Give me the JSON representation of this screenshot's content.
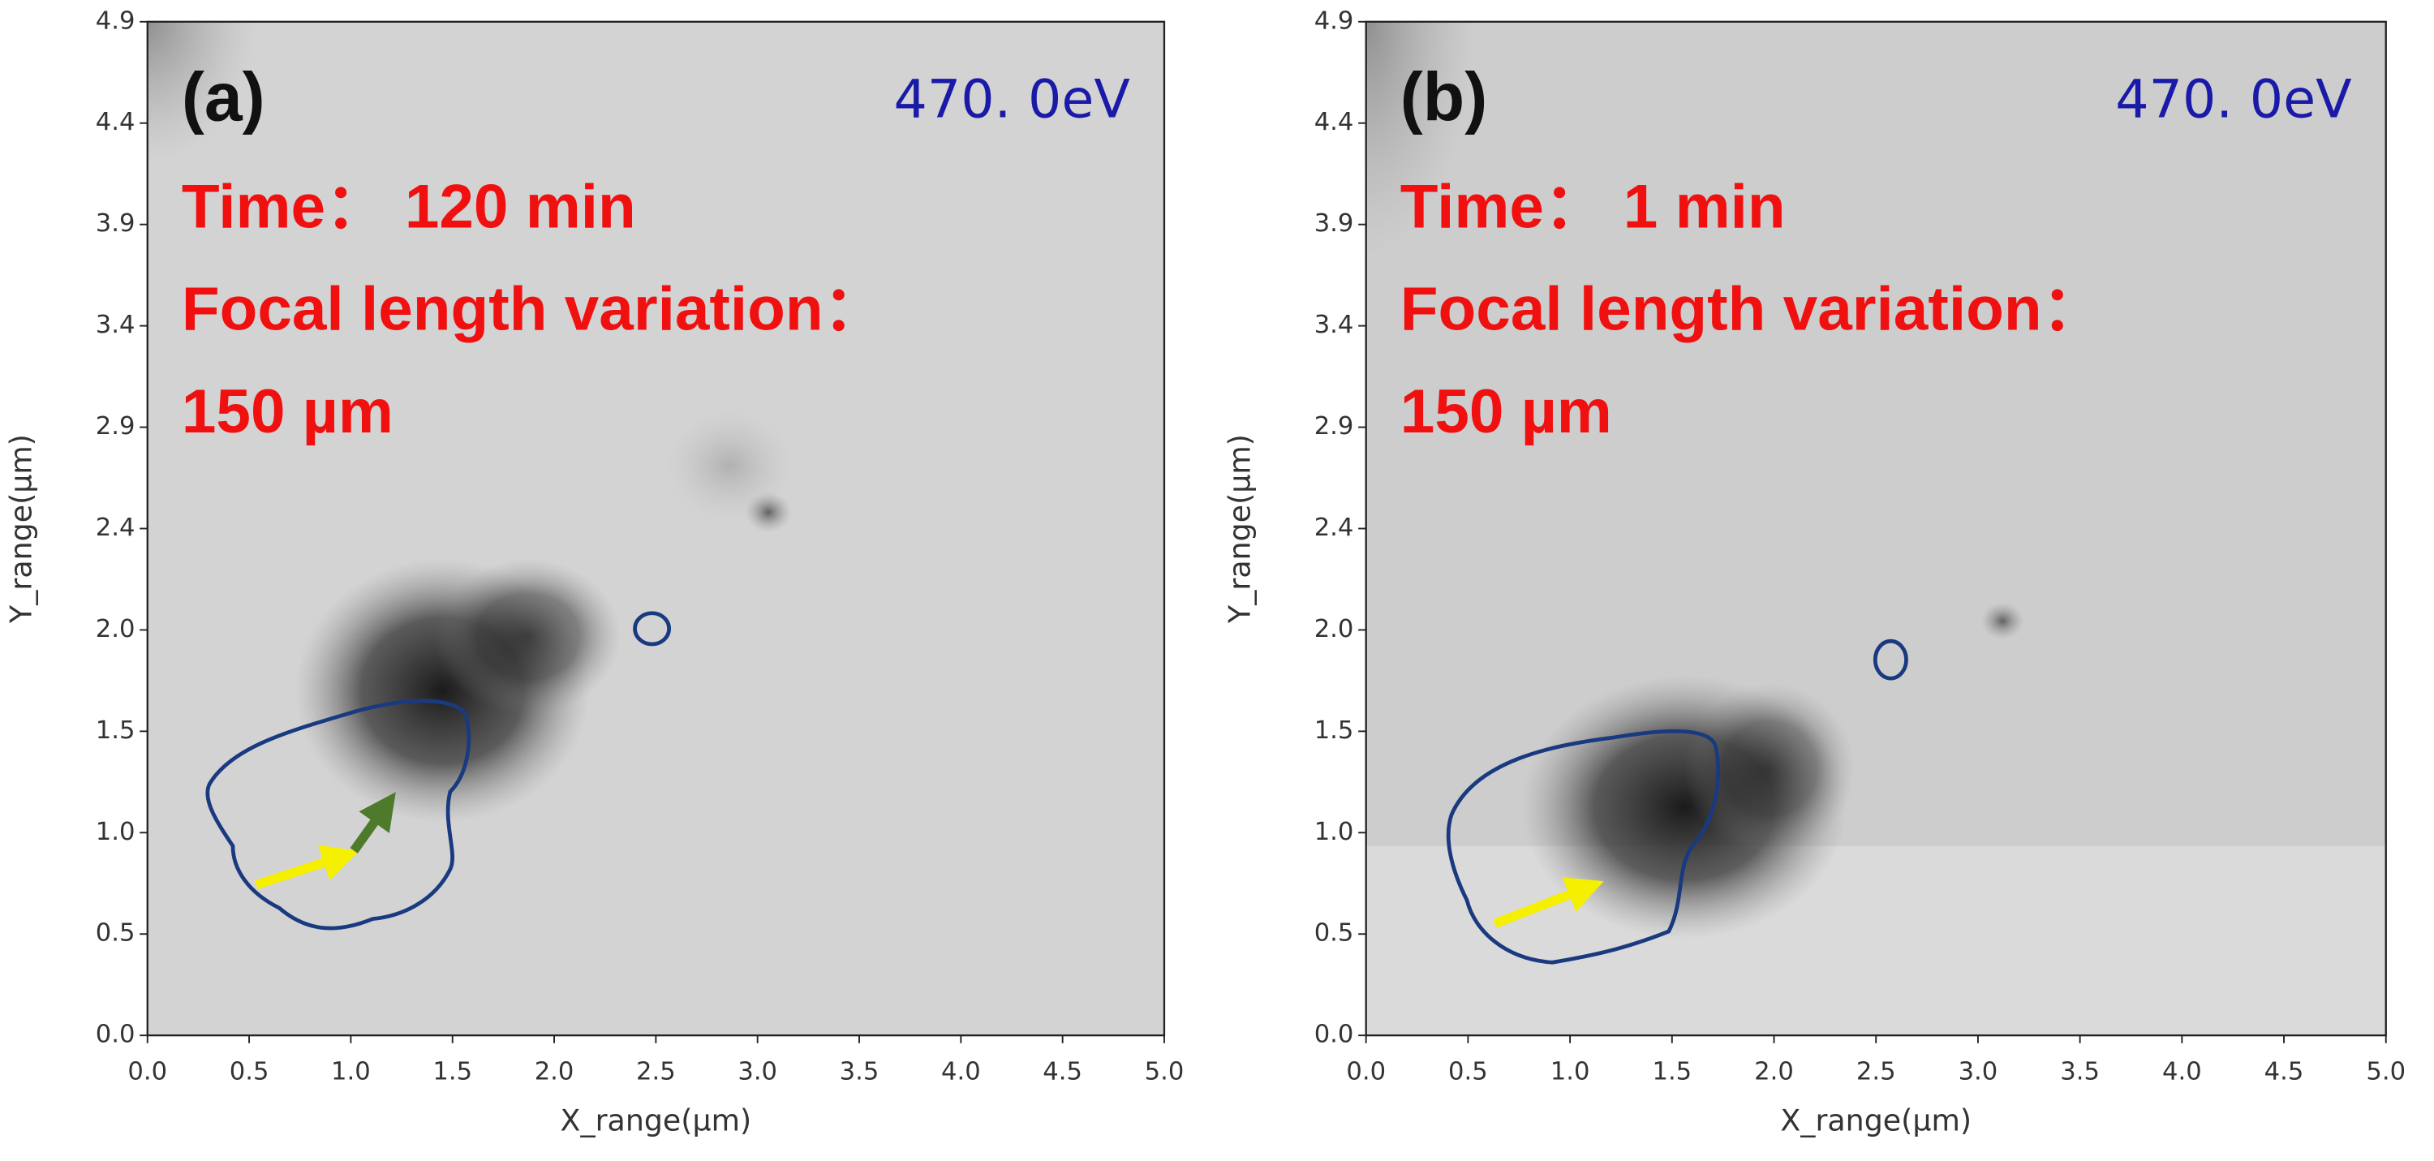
{
  "chart_data": [
    {
      "type": "image",
      "panel_label": "(a)",
      "energy_label": "470. 0eV",
      "annotations": [
        "Time： 120 min",
        "Focal length variation：",
        "150 µm"
      ],
      "xlabel": "X_range(µm)",
      "ylabel": "Y_range(µm)",
      "xlim": [
        0,
        5
      ],
      "ylim": [
        0,
        4.9
      ],
      "xticks": [
        {
          "value": 0,
          "label": "0.0"
        },
        {
          "value": 0.5,
          "label": "0.5"
        },
        {
          "value": 1,
          "label": "1.0"
        },
        {
          "value": 1.5,
          "label": "1.5"
        },
        {
          "value": 2,
          "label": "2.0"
        },
        {
          "value": 2.5,
          "label": "2.5"
        },
        {
          "value": 3,
          "label": "3.0"
        },
        {
          "value": 3.5,
          "label": "3.5"
        },
        {
          "value": 4,
          "label": "4.0"
        },
        {
          "value": 4.5,
          "label": "4.5"
        },
        {
          "value": 5,
          "label": "5.0"
        }
      ],
      "yticks": [
        {
          "value": 0,
          "label": "0.0"
        },
        {
          "value": 0.49,
          "label": "0.5"
        },
        {
          "value": 0.98,
          "label": "1.0"
        },
        {
          "value": 1.47,
          "label": "1.5"
        },
        {
          "value": 1.96,
          "label": "2.0"
        },
        {
          "value": 2.45,
          "label": "2.4"
        },
        {
          "value": 2.94,
          "label": "2.9"
        },
        {
          "value": 3.43,
          "label": "3.4"
        },
        {
          "value": 3.92,
          "label": "3.9"
        },
        {
          "value": 4.41,
          "label": "4.4"
        },
        {
          "value": 4.9,
          "label": "4.9"
        }
      ]
    },
    {
      "type": "image",
      "panel_label": "(b)",
      "energy_label": "470. 0eV",
      "annotations": [
        "Time： 1 min",
        "Focal length variation：",
        "150 µm"
      ],
      "xlabel": "X_range(µm)",
      "ylabel": "Y_range(µm)",
      "xlim": [
        0,
        5
      ],
      "ylim": [
        0,
        4.9
      ],
      "xticks": [
        {
          "value": 0,
          "label": "0.0"
        },
        {
          "value": 0.5,
          "label": "0.5"
        },
        {
          "value": 1,
          "label": "1.0"
        },
        {
          "value": 1.5,
          "label": "1.5"
        },
        {
          "value": 2,
          "label": "2.0"
        },
        {
          "value": 2.5,
          "label": "2.5"
        },
        {
          "value": 3,
          "label": "3.0"
        },
        {
          "value": 3.5,
          "label": "3.5"
        },
        {
          "value": 4,
          "label": "4.0"
        },
        {
          "value": 4.5,
          "label": "4.5"
        },
        {
          "value": 5,
          "label": "5.0"
        }
      ],
      "yticks": [
        {
          "value": 0,
          "label": "0.0"
        },
        {
          "value": 0.49,
          "label": "0.5"
        },
        {
          "value": 0.98,
          "label": "1.0"
        },
        {
          "value": 1.47,
          "label": "1.5"
        },
        {
          "value": 1.96,
          "label": "2.0"
        },
        {
          "value": 2.45,
          "label": "2.4"
        },
        {
          "value": 2.94,
          "label": "2.9"
        },
        {
          "value": 3.43,
          "label": "3.4"
        },
        {
          "value": 3.92,
          "label": "3.9"
        },
        {
          "value": 4.41,
          "label": "4.4"
        },
        {
          "value": 4.9,
          "label": "4.9"
        }
      ]
    }
  ]
}
